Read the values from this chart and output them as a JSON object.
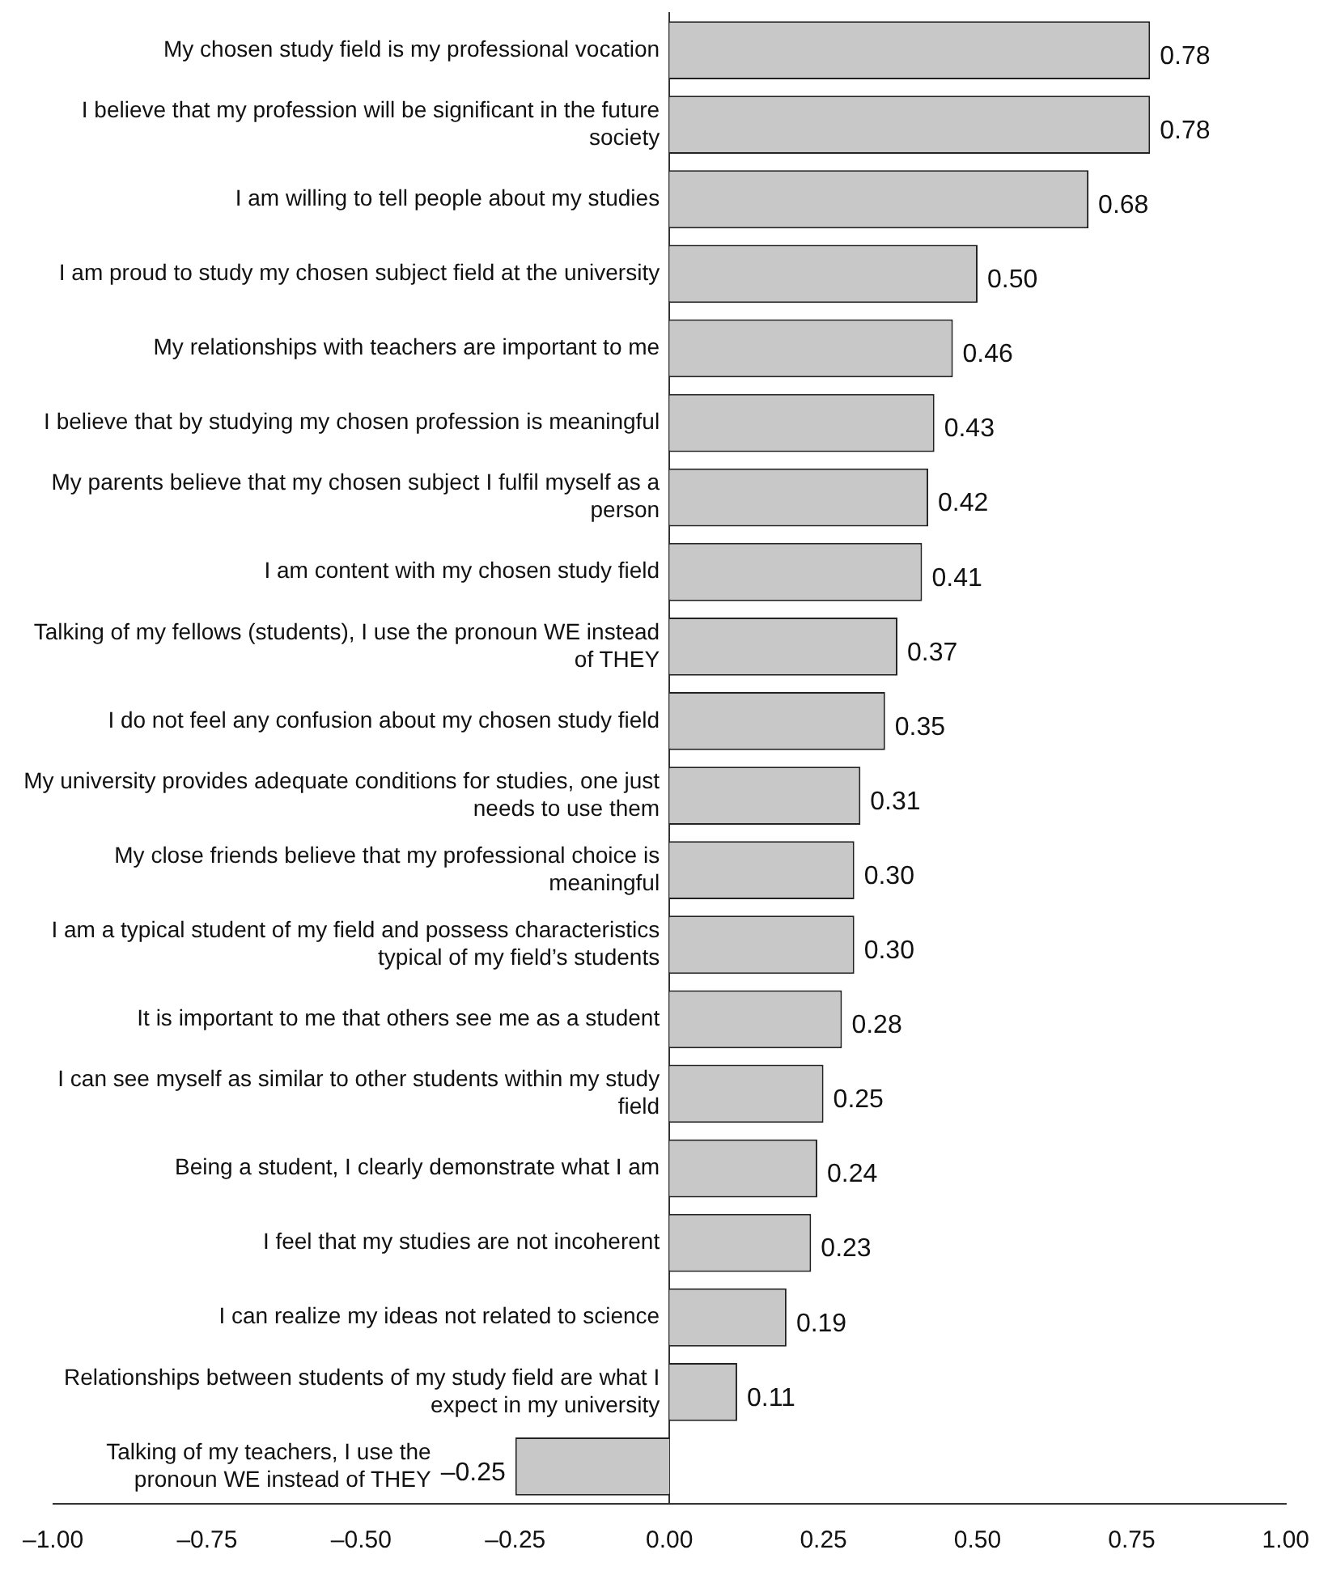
{
  "chart_data": {
    "type": "bar",
    "orientation": "horizontal",
    "categories": [
      "My chosen study field is my professional vocation",
      "I believe that my profession will be significant in the future society",
      "I am willing to tell people about my studies",
      "I am proud to study my chosen subject field at the university",
      "My relationships with teachers are important to me",
      "I believe that by studying my chosen profession is meaningful",
      "My parents believe that my chosen subject I fulfil myself as a person",
      "I am content with my chosen study field",
      "Talking of my fellows (students), I use the pronoun WE instead of THEY",
      "I do not feel any confusion about my chosen study field",
      "My university provides adequate conditions for studies, one just needs to use them",
      "My close friends believe that my professional choice is meaningful",
      "I am a typical student of my field and possess characteristics typical of my field’s students",
      "It is important to me that others see me as a student",
      "I can see myself as similar to other students within my study field",
      "Being a student, I clearly demonstrate what I am",
      "I feel that my studies are not incoherent",
      "I can realize my ideas not related to science",
      "Relationships between students of my study field are what I expect in my university",
      "Talking of my teachers, I use the pronoun WE instead of THEY"
    ],
    "values": [
      0.78,
      0.78,
      0.68,
      0.5,
      0.46,
      0.43,
      0.42,
      0.41,
      0.37,
      0.35,
      0.31,
      0.3,
      0.3,
      0.28,
      0.25,
      0.24,
      0.23,
      0.19,
      0.11,
      -0.25
    ],
    "value_labels": [
      "0.78",
      "0.78",
      "0.68",
      "0.50",
      "0.46",
      "0.43",
      "0.42",
      "0.41",
      "0.37",
      "0.35",
      "0.31",
      "0.30",
      "0.30",
      "0.28",
      "0.25",
      "0.24",
      "0.23",
      "0.19",
      "0.11",
      "–0.25"
    ],
    "color": "#c8c8c8",
    "xlim": [
      -1,
      1
    ],
    "xticks": [
      {
        "value": -1,
        "label": "–1.00"
      },
      {
        "value": -0.75,
        "label": "–0.75"
      },
      {
        "value": -0.5,
        "label": "–0.50"
      },
      {
        "value": -0.25,
        "label": "–0.25"
      },
      {
        "value": 0,
        "label": "0.00"
      },
      0.25,
      {
        "value": 0.5,
        "label": "0.50"
      },
      0.75,
      {
        "value": 1,
        "label": "1.00"
      }
    ],
    "grid": false,
    "legend": false
  }
}
